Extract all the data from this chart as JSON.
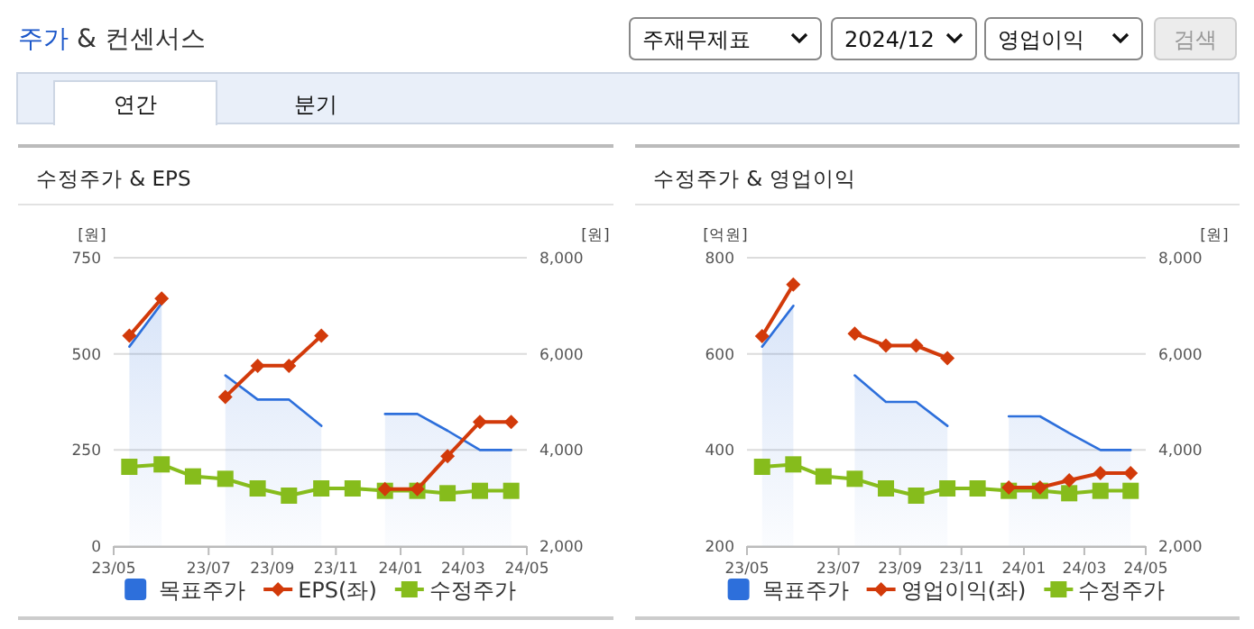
{
  "chart_data": [
    {
      "type": "other",
      "title": "주가 & 컨센서스",
      "annotations": [
        "주재무제표",
        "2024/12",
        "영업이익",
        "검색",
        "연간",
        "분기"
      ]
    },
    {
      "type": "line",
      "title": "수정주가 & EPS",
      "ylabel": "[원]",
      "y2label": "[원]",
      "legend": "bottom",
      "grid": "y",
      "x": [
        "2023-05-01",
        "2023-06-01",
        "2023-07-01",
        "2023-08-01",
        "2023-09-01",
        "2023-10-01",
        "2023-11-01",
        "2023-12-01",
        "2024-01-01",
        "2024-02-01",
        "2024-03-01",
        "2024-04-01",
        "2024-05-01"
      ],
      "xlim": [
        "2023-04-16",
        "2024-05-16"
      ],
      "xticks": [
        {
          "value": "2023-04-16",
          "label": "23/05"
        },
        {
          "value": "2023-07-16",
          "label": "23/07"
        },
        {
          "value": "2023-09-15",
          "label": "23/09"
        },
        {
          "value": "2023-11-15",
          "label": "23/11"
        },
        {
          "value": "2024-01-16",
          "label": "24/01"
        },
        {
          "value": "2024-03-16",
          "label": "24/03"
        },
        {
          "value": "2024-05-16",
          "label": "24/05"
        }
      ],
      "ylim": [
        0,
        750
      ],
      "yticks": [
        0,
        250,
        500,
        750
      ],
      "y2lim": [
        2000,
        8000
      ],
      "y2ticks": [
        {
          "value": 2000,
          "label": "2,000"
        },
        {
          "value": 4000,
          "label": "4,000"
        },
        {
          "value": 6000,
          "label": "6,000"
        },
        {
          "value": 8000,
          "label": "8,000"
        }
      ],
      "series": [
        {
          "name": "목표주가",
          "type": "area",
          "axis": "y2",
          "color": "#2d6fdb",
          "marker": "none",
          "values": [
            6150,
            7050,
            null,
            5550,
            5050,
            5050,
            4500,
            null,
            4750,
            4750,
            4400,
            4000,
            4000
          ]
        },
        {
          "name": "EPS(좌)",
          "type": "line",
          "color": "#d23a0a",
          "marker": "diamond",
          "values": [
            547,
            644,
            null,
            388,
            469,
            469,
            547,
            null,
            148,
            148,
            234,
            323,
            323
          ]
        },
        {
          "name": "수정주가",
          "type": "line",
          "axis": "y2",
          "color": "#86bc1c",
          "marker": "square",
          "values": [
            3650,
            3700,
            3450,
            3400,
            3200,
            3050,
            3200,
            3200,
            3150,
            3150,
            3100,
            3150,
            3150
          ]
        }
      ]
    },
    {
      "type": "line",
      "title": "수정주가 & 영업이익",
      "ylabel": "[억원]",
      "y2label": "[원]",
      "legend": "bottom",
      "grid": "y",
      "x": [
        "2023-05-01",
        "2023-06-01",
        "2023-07-01",
        "2023-08-01",
        "2023-09-01",
        "2023-10-01",
        "2023-11-01",
        "2023-12-01",
        "2024-01-01",
        "2024-02-01",
        "2024-03-01",
        "2024-04-01",
        "2024-05-01"
      ],
      "xlim": [
        "2023-04-16",
        "2024-05-16"
      ],
      "xticks": [
        {
          "value": "2023-04-16",
          "label": "23/05"
        },
        {
          "value": "2023-07-16",
          "label": "23/07"
        },
        {
          "value": "2023-09-15",
          "label": "23/09"
        },
        {
          "value": "2023-11-15",
          "label": "23/11"
        },
        {
          "value": "2024-01-16",
          "label": "24/01"
        },
        {
          "value": "2024-03-16",
          "label": "24/03"
        },
        {
          "value": "2024-05-16",
          "label": "24/05"
        }
      ],
      "ylim": [
        200,
        800
      ],
      "yticks": [
        200,
        400,
        600,
        800
      ],
      "y2lim": [
        2000,
        8000
      ],
      "y2ticks": [
        {
          "value": 2000,
          "label": "2,000"
        },
        {
          "value": 4000,
          "label": "4,000"
        },
        {
          "value": 6000,
          "label": "6,000"
        },
        {
          "value": 8000,
          "label": "8,000"
        }
      ],
      "series": [
        {
          "name": "목표주가",
          "type": "area",
          "axis": "y2",
          "color": "#2d6fdb",
          "marker": "none",
          "values": [
            6150,
            7000,
            null,
            5550,
            5000,
            5000,
            4500,
            null,
            4700,
            4700,
            4350,
            4000,
            4000
          ]
        },
        {
          "name": "영업이익(좌)",
          "type": "line",
          "color": "#d23a0a",
          "marker": "diamond",
          "values": [
            637,
            744,
            null,
            642,
            617,
            617,
            591,
            null,
            322,
            322,
            337,
            352,
            352
          ]
        },
        {
          "name": "수정주가",
          "type": "line",
          "axis": "y2",
          "color": "#86bc1c",
          "marker": "square",
          "values": [
            3650,
            3700,
            3450,
            3400,
            3200,
            3050,
            3200,
            3200,
            3150,
            3150,
            3100,
            3150,
            3150
          ]
        }
      ]
    }
  ]
}
